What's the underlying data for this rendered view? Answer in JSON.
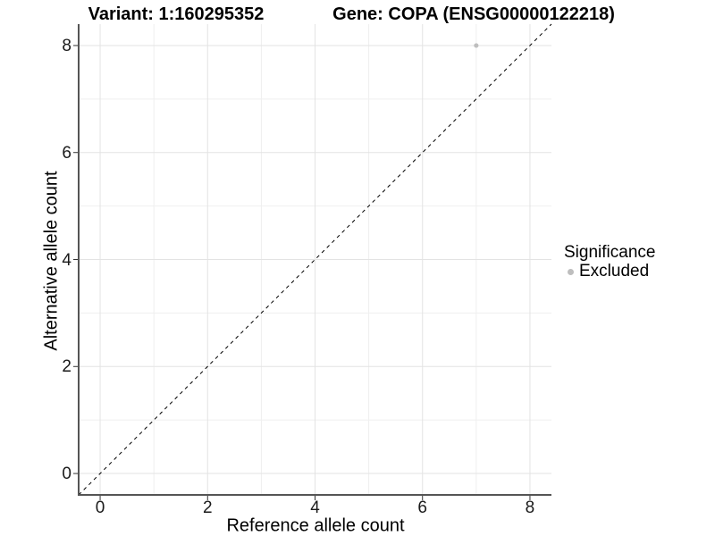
{
  "chart_data": {
    "type": "scatter",
    "titles": {
      "left": "Variant: 1:160295352",
      "right": "Gene: COPA (ENSG00000122218)"
    },
    "xlabel": "Reference allele count",
    "ylabel": "Alternative allele count",
    "xlim": [
      -0.4,
      8.4
    ],
    "ylim": [
      -0.4,
      8.4
    ],
    "x_ticks": [
      0,
      2,
      4,
      6,
      8
    ],
    "x_tick_labels": [
      "0",
      "2",
      "4",
      "6",
      "8"
    ],
    "y_ticks": [
      0,
      2,
      4,
      6,
      8
    ],
    "y_tick_labels": [
      "0",
      "2",
      "4",
      "6",
      "8"
    ],
    "x_minor_gridlines": [
      1,
      3,
      5,
      7
    ],
    "y_minor_gridlines": [
      1,
      3,
      5,
      7
    ],
    "grid": "on",
    "reference_line": {
      "equation": "y = x",
      "style": "dashed",
      "color": "#000000"
    },
    "series": [
      {
        "name": "Excluded",
        "color": "#bebebe",
        "points": [
          {
            "x": 7,
            "y": 8
          }
        ]
      }
    ],
    "legend": {
      "title": "Significance",
      "position": "right",
      "items": [
        {
          "label": "Excluded",
          "color": "#bebebe",
          "marker": "circle"
        }
      ]
    },
    "colors": {
      "background": "#ffffff",
      "grid_major": "#e3e3e3",
      "grid_minor": "#efefef",
      "axis_line": "#555555",
      "tick_mark": "#333333",
      "text": "#000000"
    }
  }
}
